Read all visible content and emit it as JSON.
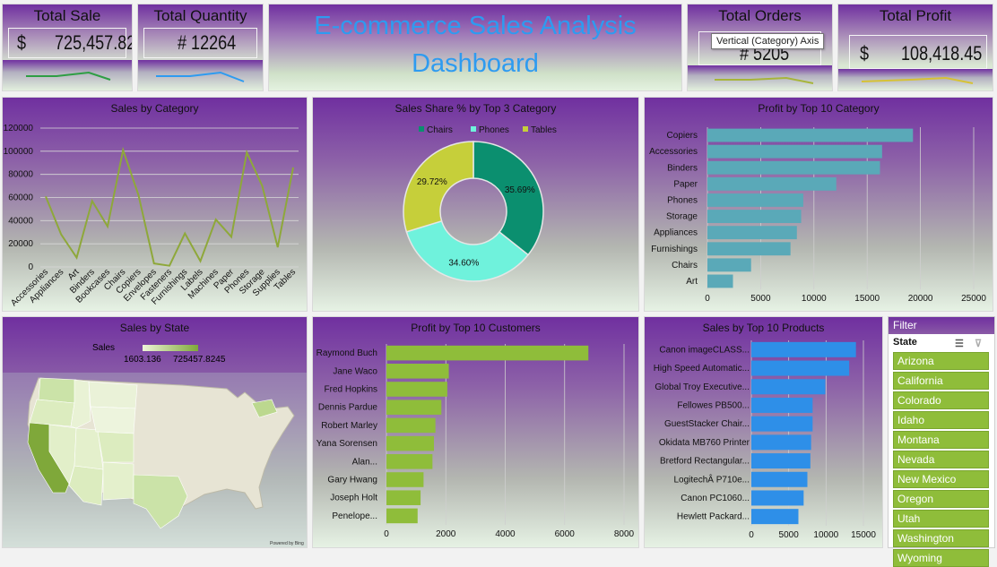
{
  "title": {
    "line1": "E-commerce Sales Analysis",
    "line2": "Dashboard"
  },
  "kpis": {
    "total_sale": {
      "label": "Total Sale",
      "currency": "$",
      "value": "725,457.82",
      "spark_color": "#2e9e44"
    },
    "total_quantity": {
      "label": "Total Quantity",
      "value": "# 12264",
      "spark_color": "#2e9bf0"
    },
    "total_orders": {
      "label": "Total Orders",
      "value": "# 5205",
      "spark_color": "#a7b53a"
    },
    "total_profit": {
      "label": "Total Profit",
      "currency": "$",
      "value": "108,418.45",
      "spark_color": "#d6c235"
    }
  },
  "tooltip": "Vertical (Category) Axis",
  "colors": {
    "accent_purple": "#7030a0",
    "line_green": "#8ea83a",
    "bar_teal": "#5aa9b8",
    "bar_green": "#8fbd3a",
    "bar_blue": "#2e8fe8",
    "pie_chairs": "#0b8f6f",
    "pie_phones": "#6ff2dc",
    "pie_tables": "#c6cf3a"
  },
  "chart_data": [
    {
      "id": "sales_by_category",
      "type": "line",
      "title": "Sales by Category",
      "categories": [
        "Accessories",
        "Appliances",
        "Art",
        "Binders",
        "Bookcases",
        "Chairs",
        "Copiers",
        "Envelopes",
        "Fasteners",
        "Furnishings",
        "Labels",
        "Machines",
        "Paper",
        "Phones",
        "Storage",
        "Supplies",
        "Tables"
      ],
      "values": [
        61000,
        28000,
        8000,
        57000,
        35000,
        101000,
        62000,
        3000,
        1000,
        29000,
        5000,
        41000,
        26000,
        99000,
        70000,
        17000,
        86000
      ],
      "ylim": [
        0,
        120000
      ],
      "yticks": [
        0,
        20000,
        40000,
        60000,
        80000,
        100000,
        120000
      ],
      "grid": true
    },
    {
      "id": "sales_share_top3",
      "type": "pie",
      "title": "Sales Share % by Top 3 Category",
      "legend_position": "top",
      "labels": [
        "Chairs",
        "Phones",
        "Tables"
      ],
      "values": [
        35.69,
        34.6,
        29.72
      ],
      "value_labels": [
        "35.69%",
        "34.60%",
        "29.72%"
      ]
    },
    {
      "id": "profit_by_top10_category",
      "type": "bar",
      "orientation": "horizontal",
      "title": "Profit by Top 10 Category",
      "categories": [
        "Copiers",
        "Accessories",
        "Binders",
        "Paper",
        "Phones",
        "Storage",
        "Appliances",
        "Furnishings",
        "Chairs",
        "Art"
      ],
      "values": [
        19300,
        16400,
        16200,
        12100,
        9000,
        8800,
        8400,
        7800,
        4100,
        2400
      ],
      "xlim": [
        0,
        25000
      ],
      "xticks": [
        0,
        5000,
        10000,
        15000,
        20000,
        25000
      ],
      "grid": true
    },
    {
      "id": "profit_by_top10_customers",
      "type": "bar",
      "orientation": "horizontal",
      "title": "Profit by Top 10 Customers",
      "categories": [
        "Raymond Buch",
        "Jane Waco",
        "Fred Hopkins",
        "Dennis Pardue",
        "Robert Marley",
        "Yana Sorensen",
        "Alan...",
        "Gary Hwang",
        "Joseph Holt",
        "Penelope..."
      ],
      "values": [
        6800,
        2100,
        2050,
        1850,
        1650,
        1600,
        1550,
        1250,
        1150,
        1050
      ],
      "xlim": [
        0,
        8000
      ],
      "xticks": [
        0,
        2000,
        4000,
        6000,
        8000
      ],
      "grid": true
    },
    {
      "id": "sales_by_top10_products",
      "type": "bar",
      "orientation": "horizontal",
      "title": "Sales by Top 10 Products",
      "categories": [
        "Canon imageCLASS...",
        "High Speed Automatic...",
        "Global Troy Executive...",
        "Fellowes PB500...",
        "GuestStacker Chair...",
        "Okidata MB760 Printer",
        "Bretford Rectangular...",
        "LogitechÂ P710e...",
        "Canon PC1060...",
        "Hewlett Packard..."
      ],
      "values": [
        14000,
        13100,
        9900,
        8200,
        8200,
        8000,
        7900,
        7500,
        7000,
        6300
      ],
      "xlim": [
        0,
        15000
      ],
      "xticks": [
        0,
        5000,
        10000,
        15000
      ],
      "grid": true
    }
  ],
  "map": {
    "title": "Sales by State",
    "legend_label": "Sales",
    "legend_min": "1603.136",
    "legend_max": "725457.8245",
    "attribution": "Powered by Bing"
  },
  "filter": {
    "title": "Filter",
    "field": "State",
    "items": [
      "Arizona",
      "California",
      "Colorado",
      "Idaho",
      "Montana",
      "Nevada",
      "New Mexico",
      "Oregon",
      "Utah",
      "Washington",
      "Wyoming"
    ]
  }
}
